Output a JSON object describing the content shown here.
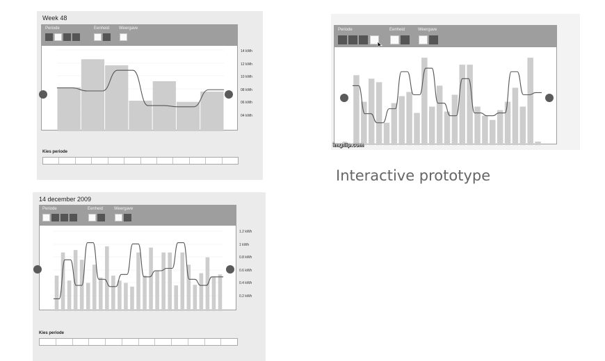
{
  "colors": {
    "bar": "#cdcdcd",
    "line": "#555555",
    "toolbar": "#9e9e9e",
    "panel": "#ebebeb",
    "swatch_dark": "#555555",
    "swatch_light": "#fafafa",
    "handle": "#5a5a5a"
  },
  "caption": "Interactive prototype",
  "watermark": "imgflip.com",
  "wireframe_week": {
    "title": "Week 48",
    "toolbar": {
      "periode": "Periode",
      "eenheid": "Eenheid",
      "weergave": "Weergave"
    },
    "y_labels": [
      "14 kWh",
      "12 kWh",
      "10 kWh",
      "08 kWh",
      "06 kWh",
      "04 kWh"
    ],
    "kies_periode": "Kies periode"
  },
  "wireframe_day": {
    "title": "14 december 2009",
    "toolbar": {
      "periode": "Periode",
      "eenheid": "Eenheid",
      "weergave": "Weergave"
    },
    "y_labels": [
      "1.2 kWh",
      "1 kWh",
      "0.8 kWh",
      "0.6 kWh",
      "0.4 kWh",
      "0.2 kWh"
    ],
    "kies_periode": "Kies periode"
  },
  "prototype": {
    "toolbar": {
      "periode": "Periode",
      "eenheid": "Eenheid",
      "weergave": "Weergave"
    }
  },
  "chart_data": [
    {
      "type": "bar",
      "title": "Week 48",
      "ylim": [
        2,
        16
      ],
      "series": [
        {
          "values": [
            9.2,
            13.8,
            12.8,
            7.0,
            10.2,
            6.8,
            8.5
          ]
        },
        {
          "values": [
            9.1,
            9.1,
            8.6,
            8.6,
            12.0,
            12.0,
            6.2,
            6.2,
            6.0,
            6.0,
            8.8,
            8.8
          ]
        }
      ]
    },
    {
      "type": "bar",
      "title": "14 december 2009",
      "ylim": [
        0,
        1.4
      ],
      "series": [
        {
          "values": [
            0.58,
            0.96,
            0.5,
            1.0,
            0.84,
            0.46,
            0.76,
            0.55,
            1.06,
            0.58,
            0.5,
            0.46,
            0.4,
            0.96,
            0.58,
            1.04,
            0.66,
            0.96,
            0.96,
            0.42,
            0.96,
            0.76,
            0.43,
            0.62,
            0.88,
            0.56,
            0.6
          ]
        },
        {
          "values": [
            0.2,
            0.2,
            0.84,
            0.84,
            0.42,
            0.42,
            1.12,
            1.12,
            0.52,
            0.52,
            0.4,
            0.4,
            0.6,
            0.6,
            1.1,
            1.1,
            0.56,
            0.56,
            0.66,
            0.66,
            0.7,
            0.7,
            1.12,
            1.12,
            0.52,
            0.52,
            0.42,
            0.42,
            0.56,
            0.56,
            0.56
          ]
        }
      ]
    },
    {
      "type": "bar",
      "ylim": [
        0,
        1.4
      ],
      "series": [
        {
          "values": [
            1.0,
            0.62,
            0.95,
            0.9,
            0.32,
            0.6,
            0.7,
            0.76,
            0.46,
            1.25,
            0.55,
            0.85,
            0.48,
            0.72,
            1.15,
            1.15,
            0.55,
            0.42,
            0.36,
            0.5,
            0.62,
            0.82,
            0.55,
            1.25,
            0.05
          ]
        },
        {
          "values": [
            0.85,
            0.85,
            0.45,
            0.45,
            0.32,
            0.32,
            0.52,
            0.52,
            1.05,
            1.05,
            0.72,
            0.72,
            1.1,
            1.1,
            0.6,
            0.6,
            0.42,
            0.42,
            0.95,
            0.95,
            0.46,
            0.46,
            0.42,
            0.42,
            0.46,
            0.46,
            1.05,
            1.05,
            0.72,
            0.72,
            0.75,
            0.75
          ]
        }
      ]
    }
  ]
}
